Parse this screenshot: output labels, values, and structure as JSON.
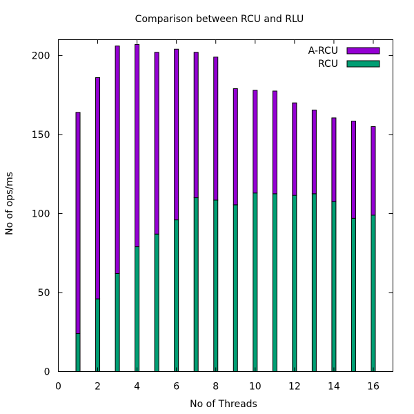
{
  "chart_data": {
    "type": "bar",
    "stacked": true,
    "title": "Comparison between RCU and RLU",
    "xlabel": "No of Threads",
    "ylabel": "No of ops/ms",
    "xlim": [
      0,
      17
    ],
    "ylim": [
      0,
      210
    ],
    "xticks": [
      0,
      2,
      4,
      6,
      8,
      10,
      12,
      14,
      16
    ],
    "yticks": [
      0,
      50,
      100,
      150,
      200
    ],
    "grid": false,
    "legend_position": "top-right",
    "x": [
      1,
      2,
      3,
      4,
      5,
      6,
      7,
      8,
      9,
      10,
      11,
      12,
      13,
      14,
      15,
      16
    ],
    "series": [
      {
        "name": "A-RCU",
        "color": "#9400d3",
        "values": [
          140,
          140,
          144,
          128,
          115,
          108,
          92,
          90.5,
          73.5,
          65,
          65,
          58.5,
          53,
          53,
          61.5,
          56
        ]
      },
      {
        "name": "RCU",
        "color": "#009e73",
        "values": [
          24,
          46,
          62,
          79,
          87,
          96,
          110,
          108.5,
          105.5,
          113,
          112.5,
          111.5,
          112.5,
          107.5,
          97,
          99
        ]
      }
    ]
  }
}
